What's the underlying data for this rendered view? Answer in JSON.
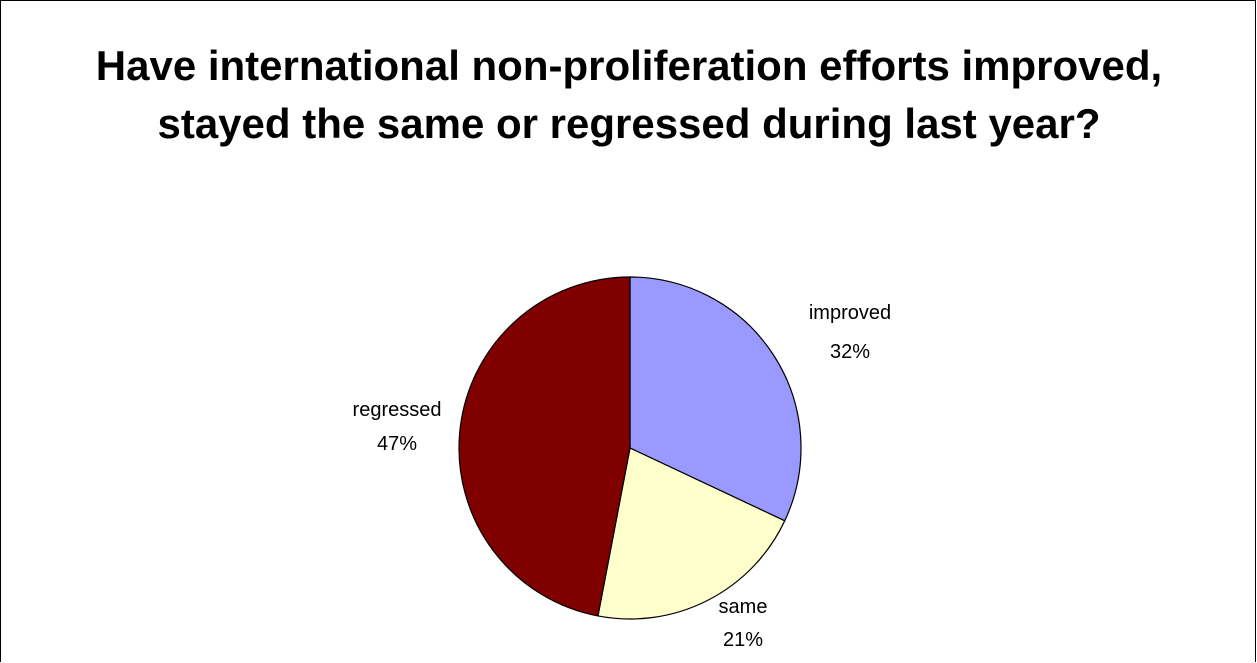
{
  "chart_data": {
    "type": "pie",
    "title": "Have international non-proliferation efforts improved, stayed the same or regressed during last year?",
    "slices": [
      {
        "label": "improved",
        "value": 32,
        "value_label": "32%",
        "color": "#9999FF"
      },
      {
        "label": "same",
        "value": 21,
        "value_label": "21%",
        "color": "#FFFFCC"
      },
      {
        "label": "regressed",
        "value": 47,
        "value_label": "47%",
        "color": "#800000"
      }
    ],
    "start_angle_deg": 0,
    "direction": "clockwise",
    "legend": "none",
    "border_color": "#000000"
  }
}
